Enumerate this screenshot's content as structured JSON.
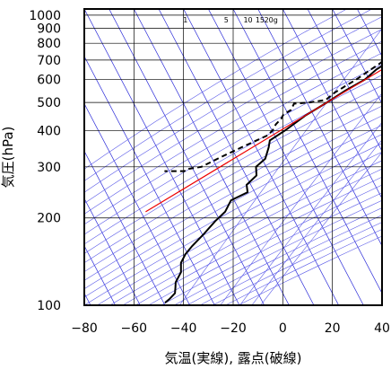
{
  "chart_data": {
    "type": "line",
    "title": "",
    "xlabel": "気温(実線), 露点(破線)",
    "ylabel": "気圧(hPa)",
    "xlim": [
      -80,
      40
    ],
    "ylim_hpa": [
      1050,
      100
    ],
    "y_scale": "log",
    "x_ticks": [
      "−80",
      "−60",
      "−40",
      "−20",
      "0",
      "20",
      "40"
    ],
    "x_tick_values": [
      -80,
      -60,
      -40,
      -20,
      0,
      20,
      40
    ],
    "y_ticks": [
      "100",
      "200",
      "300",
      "400",
      "500",
      "600",
      "700",
      "800",
      "900",
      "1000"
    ],
    "y_tick_values": [
      100,
      200,
      300,
      400,
      500,
      600,
      700,
      800,
      900,
      1000
    ],
    "mixing_ratio_labels": [
      "1",
      "5",
      "10",
      "15",
      "20g"
    ],
    "mixing_ratio_values": [
      1,
      5,
      10,
      15,
      20
    ],
    "grid": true,
    "series": [
      {
        "role": "temperature",
        "style": "solid",
        "color": "#000000",
        "points": [
          [
            15.5,
            1000
          ],
          [
            9.0,
            925
          ],
          [
            3.0,
            850
          ],
          [
            -2.0,
            800
          ],
          [
            -5.0,
            750
          ],
          [
            -8.0,
            700
          ],
          [
            -12.0,
            650
          ],
          [
            -14.5,
            600
          ],
          [
            -20.0,
            550
          ],
          [
            -25.0,
            500
          ],
          [
            -31.0,
            450
          ],
          [
            -36.0,
            400
          ],
          [
            -40.0,
            370
          ],
          [
            -39.0,
            350
          ],
          [
            -38.0,
            320
          ],
          [
            -40.0,
            300
          ],
          [
            -38.0,
            280
          ],
          [
            -40.0,
            260
          ],
          [
            -38.0,
            245
          ],
          [
            -43.0,
            230
          ],
          [
            -43.0,
            210
          ],
          [
            -45.0,
            195
          ],
          [
            -47.0,
            175
          ],
          [
            -49.0,
            160
          ],
          [
            -50.0,
            150
          ],
          [
            -50.0,
            140
          ],
          [
            -48.0,
            130
          ],
          [
            -48.0,
            120
          ],
          [
            -47.0,
            115
          ],
          [
            -46.0,
            110
          ],
          [
            -47.0,
            105
          ],
          [
            -48.0,
            102
          ]
        ]
      },
      {
        "role": "dewpoint",
        "style": "dashed",
        "color": "#000000",
        "points": [
          [
            13.0,
            1000
          ],
          [
            6.0,
            925
          ],
          [
            0.0,
            880
          ],
          [
            -1.0,
            860
          ],
          [
            -4.0,
            850
          ],
          [
            -4.0,
            790
          ],
          [
            -6.0,
            760
          ],
          [
            -10.0,
            720
          ],
          [
            -12.0,
            680
          ],
          [
            -15.0,
            640
          ],
          [
            -18.0,
            600
          ],
          [
            -20.0,
            580
          ],
          [
            -24.0,
            540
          ],
          [
            -26.0,
            510
          ],
          [
            -32.0,
            500
          ],
          [
            -38.0,
            495
          ],
          [
            -38.0,
            470
          ],
          [
            -40.0,
            455
          ],
          [
            -40.0,
            440
          ],
          [
            -41.0,
            420
          ],
          [
            -41.0,
            400
          ],
          [
            -42.0,
            385
          ],
          [
            -50.0,
            350
          ],
          [
            -56.0,
            325
          ],
          [
            -62.0,
            300
          ],
          [
            -67.0,
            295
          ],
          [
            -68.0,
            290
          ],
          [
            -73.0,
            290
          ],
          [
            -76.0,
            290
          ]
        ]
      },
      {
        "role": "parcel",
        "style": "solid",
        "color": "#ee0000",
        "points": [
          [
            15.5,
            1000
          ],
          [
            -25.0,
            500
          ],
          [
            -75.0,
            210
          ]
        ]
      }
    ],
    "colors": {
      "grid": "#000000",
      "isotherm": "#2a2ad8",
      "adiabat": "#5a5ae8",
      "mixing_ratio": "#5a5ae8",
      "temperature": "#000000",
      "dewpoint": "#000000",
      "parcel": "#ee0000",
      "wind_barbs": "#000000"
    },
    "wind_barbs": "vertical column of wind barbs along the left side of the plot"
  }
}
